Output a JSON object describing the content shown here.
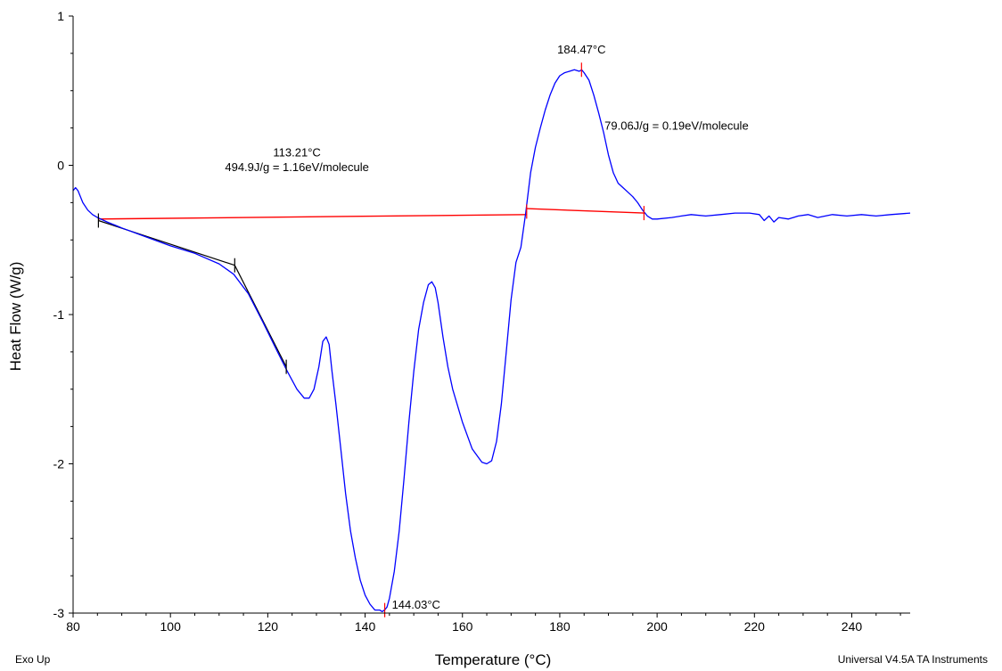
{
  "chart_data": {
    "type": "line",
    "title": "",
    "xlabel": "Temperature (°C)",
    "ylabel": "Heat Flow (W/g)",
    "xlim": [
      80,
      252
    ],
    "ylim": [
      -3,
      1
    ],
    "x_ticks": [
      80,
      100,
      120,
      140,
      160,
      180,
      200,
      220,
      240
    ],
    "y_ticks": [
      1,
      0,
      -1,
      -2,
      -3
    ],
    "x_tick_labels": [
      "80",
      "100",
      "120",
      "140",
      "160",
      "180",
      "200",
      "220",
      "240"
    ],
    "y_tick_labels": [
      "1",
      "0",
      "-1",
      "-2",
      "-3"
    ],
    "grid": false,
    "footer_left": "Exo Up",
    "footer_right": "Universal V4.5A TA Instruments",
    "colors": {
      "curve": "#0000ff",
      "baseline": "#ff0000",
      "tangent": "#000000",
      "axes": "#000000"
    },
    "series": [
      {
        "color": "#0000ff",
        "x": [
          80,
          80.5,
          81,
          82,
          83,
          84,
          85,
          87,
          90,
          95,
          100,
          105,
          110,
          113,
          116,
          119,
          122,
          124,
          126,
          127.5,
          128.5,
          129.5,
          130.5,
          131.3,
          132,
          132.6,
          133.2,
          134,
          135,
          136,
          137,
          138,
          139,
          140,
          141,
          142,
          143,
          143.5,
          144,
          144.5,
          145,
          146,
          147,
          148,
          149,
          150,
          151,
          152,
          153,
          153.7,
          154.4,
          155,
          156,
          157,
          158,
          160,
          162,
          164,
          165,
          166,
          167,
          168,
          169,
          170,
          171,
          172,
          173,
          174,
          175,
          176,
          177,
          178,
          179,
          180,
          181,
          182,
          183,
          184,
          184.5,
          185,
          186,
          187,
          188,
          189,
          190,
          191,
          192,
          193,
          194,
          195,
          196,
          197,
          198,
          199,
          200,
          203,
          205,
          207,
          210,
          213,
          216,
          219,
          221,
          222,
          223,
          224,
          225,
          227,
          229,
          231,
          233,
          236,
          239,
          242,
          245,
          248,
          252
        ],
        "y": [
          -0.17,
          -0.15,
          -0.17,
          -0.25,
          -0.3,
          -0.33,
          -0.35,
          -0.38,
          -0.42,
          -0.48,
          -0.54,
          -0.59,
          -0.66,
          -0.73,
          -0.86,
          -1.05,
          -1.25,
          -1.38,
          -1.5,
          -1.56,
          -1.56,
          -1.5,
          -1.35,
          -1.18,
          -1.15,
          -1.2,
          -1.38,
          -1.6,
          -1.9,
          -2.2,
          -2.45,
          -2.63,
          -2.78,
          -2.88,
          -2.94,
          -2.98,
          -2.98,
          -2.99,
          -2.98,
          -2.96,
          -2.9,
          -2.72,
          -2.45,
          -2.1,
          -1.72,
          -1.38,
          -1.1,
          -0.92,
          -0.8,
          -0.78,
          -0.82,
          -0.92,
          -1.15,
          -1.35,
          -1.5,
          -1.72,
          -1.9,
          -1.99,
          -2.0,
          -1.98,
          -1.85,
          -1.6,
          -1.25,
          -0.9,
          -0.65,
          -0.55,
          -0.32,
          -0.05,
          0.12,
          0.25,
          0.37,
          0.47,
          0.55,
          0.6,
          0.62,
          0.63,
          0.64,
          0.63,
          0.64,
          0.62,
          0.57,
          0.47,
          0.35,
          0.22,
          0.07,
          -0.05,
          -0.12,
          -0.15,
          -0.18,
          -0.21,
          -0.25,
          -0.3,
          -0.34,
          -0.36,
          -0.36,
          -0.35,
          -0.34,
          -0.33,
          -0.34,
          -0.33,
          -0.32,
          -0.32,
          -0.33,
          -0.37,
          -0.34,
          -0.38,
          -0.35,
          -0.36,
          -0.34,
          -0.33,
          -0.35,
          -0.33,
          -0.34,
          -0.33,
          -0.34,
          -0.33,
          -0.32
        ]
      }
    ],
    "baselines": [
      {
        "color": "#ff0000",
        "x": [
          85.2,
          173.2
        ],
        "y": [
          -0.36,
          -0.33
        ]
      },
      {
        "color": "#ff0000",
        "x": [
          173.2,
          197.3
        ],
        "y": [
          -0.29,
          -0.32
        ]
      }
    ],
    "tangent_lines": [
      {
        "color": "#000000",
        "x": [
          85.2,
          113.21
        ],
        "y": [
          -0.37,
          -0.67
        ]
      },
      {
        "color": "#000000",
        "x": [
          113.21,
          123.8
        ],
        "y": [
          -0.67,
          -1.35
        ]
      }
    ],
    "markers": [
      {
        "color": "#000000",
        "x": 85.2,
        "y": -0.37
      },
      {
        "color": "#000000",
        "x": 113.21,
        "y": -0.67
      },
      {
        "color": "#000000",
        "x": 123.8,
        "y": -1.35
      },
      {
        "color": "#ff0000",
        "x": 173.2,
        "y": -0.31
      },
      {
        "color": "#ff0000",
        "x": 197.3,
        "y": -0.32
      },
      {
        "color": "#ff0000",
        "x": 184.47,
        "y": 0.64
      },
      {
        "color": "#ff0000",
        "x": 144.03,
        "y": -2.98
      }
    ],
    "annotations": [
      {
        "text": "184.47°C",
        "x": 184.47,
        "y": 0.75,
        "anchor": "middle"
      },
      {
        "text": "79.06J/g = 0.19eV/molecule",
        "x": 189.2,
        "y": 0.24,
        "anchor": "start"
      },
      {
        "text": "113.21°C",
        "x": 126,
        "y": 0.06,
        "anchor": "middle"
      },
      {
        "text": "494.9J/g = 1.16eV/molecule",
        "x": 126,
        "y": -0.04,
        "anchor": "middle"
      },
      {
        "text": "144.03°C",
        "x": 145.5,
        "y": -2.97,
        "anchor": "start"
      }
    ]
  }
}
